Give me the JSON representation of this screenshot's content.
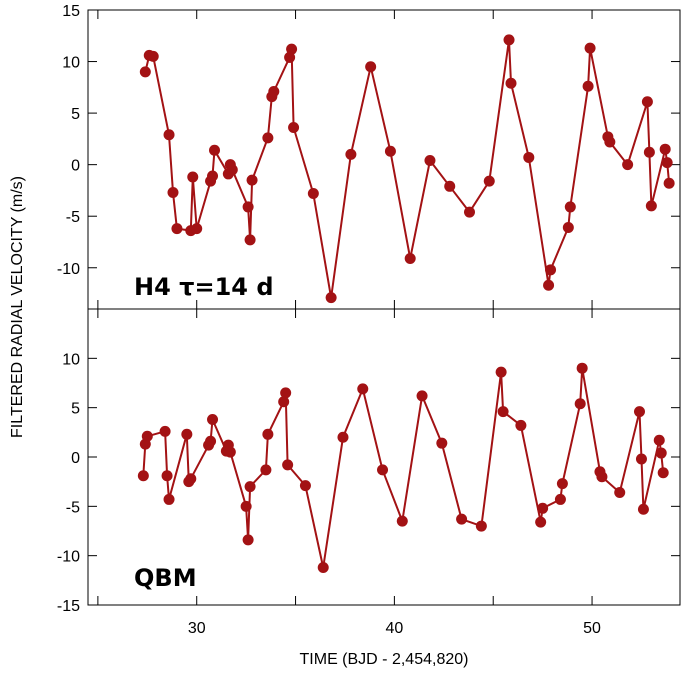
{
  "colors": {
    "series": "#a31214",
    "axis": "#000000"
  },
  "xlabel": "TIME (BJD - 2,454,820)",
  "ylabel": "FILTERED RADIAL VELOCITY (m/s)",
  "chart_data": [
    {
      "type": "line",
      "panel_label": "H4 τ=14 d",
      "xlim": [
        24.5,
        54.5
      ],
      "ylim": [
        -14,
        15
      ],
      "yticks_labeled": [
        15,
        10,
        5,
        0,
        -5,
        -10
      ],
      "series": [
        {
          "x": [
            27.4,
            27.6,
            27.8,
            28.6,
            28.8,
            29.0,
            29.7,
            29.8,
            30.0,
            30.7,
            30.8,
            30.9,
            31.6,
            31.7,
            31.8,
            32.6,
            32.7,
            32.8,
            33.6,
            33.8,
            33.9,
            34.7,
            34.8,
            34.9,
            35.9,
            36.8,
            37.8,
            38.8,
            39.8,
            40.8,
            41.8,
            42.8,
            43.8,
            44.8,
            45.8,
            45.9,
            46.8,
            47.8,
            47.9,
            48.8,
            48.9,
            49.8,
            49.9,
            50.8,
            50.9,
            51.8,
            52.8,
            52.9,
            53.0,
            53.7,
            53.8,
            53.9
          ],
          "y": [
            9.0,
            10.6,
            10.5,
            2.9,
            -2.7,
            -6.2,
            -6.4,
            -1.2,
            -6.2,
            -1.6,
            -1.1,
            1.4,
            -0.9,
            0.0,
            -0.5,
            -4.1,
            -7.3,
            -1.5,
            2.6,
            6.6,
            7.1,
            10.4,
            11.2,
            3.6,
            -2.8,
            -12.9,
            1.0,
            9.5,
            1.3,
            -9.1,
            0.4,
            -2.1,
            -4.6,
            -1.6,
            12.1,
            7.9,
            0.7,
            -11.7,
            -10.2,
            -6.1,
            -4.1,
            7.6,
            11.3,
            2.7,
            2.2,
            0.0,
            6.1,
            1.2,
            -4.0,
            1.5,
            0.2,
            -1.8
          ]
        }
      ]
    },
    {
      "type": "line",
      "panel_label": "QBM",
      "xlim": [
        24.5,
        54.5
      ],
      "ylim": [
        -15,
        15
      ],
      "yticks_labeled": [
        10,
        5,
        0,
        -5,
        -10,
        -15
      ],
      "series": [
        {
          "x": [
            27.3,
            27.4,
            27.5,
            28.4,
            28.5,
            28.6,
            29.5,
            29.6,
            29.7,
            30.6,
            30.7,
            30.8,
            31.5,
            31.6,
            31.7,
            32.5,
            32.6,
            32.7,
            33.5,
            33.6,
            34.4,
            34.5,
            34.6,
            35.5,
            36.4,
            37.4,
            38.4,
            39.4,
            40.4,
            41.4,
            42.4,
            43.4,
            44.4,
            45.4,
            45.5,
            46.4,
            47.4,
            47.5,
            48.4,
            48.5,
            49.4,
            49.5,
            50.4,
            50.5,
            51.4,
            52.4,
            52.5,
            52.6,
            53.4,
            53.5,
            53.6
          ],
          "y": [
            -1.9,
            1.3,
            2.1,
            2.6,
            -1.9,
            -4.3,
            2.3,
            -2.5,
            -2.2,
            1.2,
            1.6,
            3.8,
            0.6,
            1.2,
            0.5,
            -5.0,
            -8.4,
            -3.0,
            -1.3,
            2.3,
            5.6,
            6.5,
            -0.8,
            -2.9,
            -11.2,
            2.0,
            6.9,
            -1.3,
            -6.5,
            6.2,
            1.4,
            -6.3,
            -7.0,
            8.6,
            4.6,
            3.2,
            -6.6,
            -5.2,
            -4.3,
            -2.7,
            5.4,
            9.0,
            -1.5,
            -2.0,
            -3.6,
            4.6,
            -0.2,
            -5.3,
            1.7,
            0.4,
            -1.6
          ]
        }
      ]
    }
  ],
  "xticks_labeled": [
    30,
    40,
    50
  ]
}
